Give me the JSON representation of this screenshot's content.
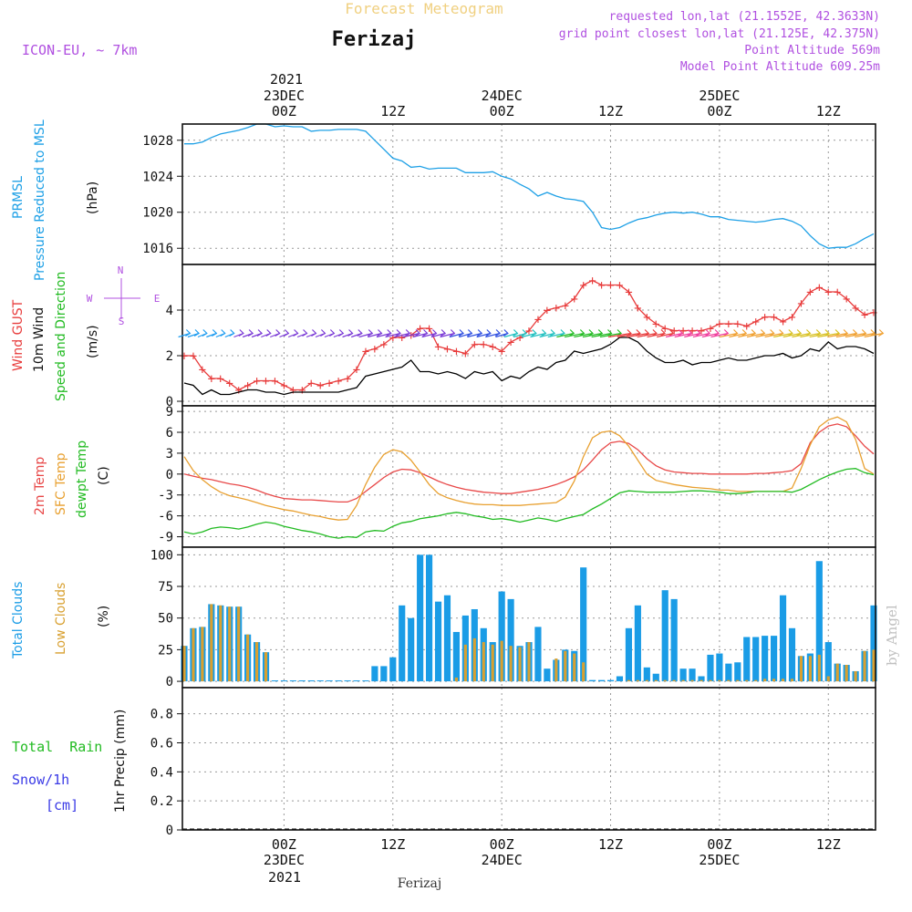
{
  "header": {
    "super_title": "Forecast Meteogram",
    "location": "Ferizaj",
    "model": "ICON-EU, ~ 7km",
    "requested_point": "requested lon,lat (21.1552E, 42.3633N)",
    "grid_point": "grid point closest lon,lat (21.125E, 42.375N)",
    "point_altitude": "Point Altitude 569m",
    "model_altitude": "Model Point Altitude 609.25m",
    "footer_location": "Ferizaj",
    "watermark": "by Angel"
  },
  "time_axis": {
    "top_year": "2021",
    "ticks": [
      {
        "hour": 0,
        "lines": [
          "23DEC",
          "00Z"
        ]
      },
      {
        "hour": 12,
        "lines": [
          "12Z"
        ]
      },
      {
        "hour": 24,
        "lines": [
          "24DEC",
          "00Z"
        ]
      },
      {
        "hour": 36,
        "lines": [
          "12Z"
        ]
      },
      {
        "hour": 48,
        "lines": [
          "25DEC",
          "00Z"
        ]
      },
      {
        "hour": 60,
        "lines": [
          "12Z"
        ]
      }
    ],
    "bottom_year": "2021",
    "range_hours": [
      -11.2,
      65.2
    ]
  },
  "colors": {
    "pressure": "#1ea0e6",
    "gust": "#e83c3c",
    "wind10m": "#000000",
    "temp2m": "#e84848",
    "sfc_temp": "#e8a030",
    "dewpoint": "#22bb22",
    "total_cloud": "#1a9ce6",
    "low_cloud": "#d8a030",
    "rain_label": "#22bb22",
    "snow_label": "#3a3ae6",
    "purple": "#b050e0"
  },
  "chart_data": [
    {
      "type": "line",
      "title": "PRMSL Pressure Reduced to MSL",
      "ylabel": "(hPa)",
      "ylim": [
        1014.2,
        1029.8
      ],
      "yticks": [
        1016,
        1020,
        1024,
        1028
      ],
      "x": [
        -11,
        -10,
        -9,
        -8,
        -7,
        -6,
        -5,
        -4,
        -3,
        -2,
        -1,
        0,
        1,
        2,
        3,
        4,
        5,
        6,
        7,
        8,
        9,
        10,
        11,
        12,
        13,
        14,
        15,
        16,
        17,
        18,
        19,
        20,
        21,
        22,
        23,
        24,
        25,
        26,
        27,
        28,
        29,
        30,
        31,
        32,
        33,
        34,
        35,
        36,
        37,
        38,
        39,
        40,
        41,
        42,
        43,
        44,
        45,
        46,
        47,
        48,
        49,
        50,
        51,
        52,
        53,
        54,
        55,
        56,
        57,
        58,
        59,
        60,
        61,
        62,
        63,
        64,
        65
      ],
      "series": [
        {
          "name": "PRMSL",
          "values": [
            1027.6,
            1027.6,
            1027.8,
            1028.3,
            1028.7,
            1028.9,
            1029.1,
            1029.4,
            1029.8,
            1029.8,
            1029.5,
            1029.6,
            1029.5,
            1029.5,
            1029.0,
            1029.1,
            1029.1,
            1029.2,
            1029.2,
            1029.2,
            1029.0,
            1028.0,
            1027.0,
            1026.0,
            1025.7,
            1025.0,
            1025.1,
            1024.8,
            1024.9,
            1024.9,
            1024.9,
            1024.4,
            1024.4,
            1024.4,
            1024.5,
            1024.0,
            1023.7,
            1023.1,
            1022.6,
            1021.8,
            1022.2,
            1021.8,
            1021.5,
            1021.4,
            1021.2,
            1020.0,
            1018.3,
            1018.1,
            1018.3,
            1018.8,
            1019.2,
            1019.4,
            1019.7,
            1019.9,
            1020.0,
            1019.9,
            1020.0,
            1019.8,
            1019.5,
            1019.5,
            1019.2,
            1019.1,
            1019.0,
            1018.9,
            1019.0,
            1019.2,
            1019.3,
            1019.0,
            1018.5,
            1017.4,
            1016.5,
            1016.0,
            1016.1,
            1016.1,
            1016.5,
            1017.1,
            1017.6
          ]
        }
      ]
    },
    {
      "type": "line",
      "title": "Wind GUST / 10m Wind Speed and Direction",
      "ylabel": "(m/s)",
      "ylim": [
        -0.2,
        6.0
      ],
      "yticks": [
        0,
        2,
        4
      ],
      "compass": [
        "N",
        "W",
        "E",
        "S"
      ],
      "x": [
        -11,
        -10,
        -9,
        -8,
        -7,
        -6,
        -5,
        -4,
        -3,
        -2,
        -1,
        0,
        1,
        2,
        3,
        4,
        5,
        6,
        7,
        8,
        9,
        10,
        11,
        12,
        13,
        14,
        15,
        16,
        17,
        18,
        19,
        20,
        21,
        22,
        23,
        24,
        25,
        26,
        27,
        28,
        29,
        30,
        31,
        32,
        33,
        34,
        35,
        36,
        37,
        38,
        39,
        40,
        41,
        42,
        43,
        44,
        45,
        46,
        47,
        48,
        49,
        50,
        51,
        52,
        53,
        54,
        55,
        56,
        57,
        58,
        59,
        60,
        61,
        62,
        63,
        64,
        65
      ],
      "series": [
        {
          "name": "Wind GUST",
          "values": [
            2.0,
            2.0,
            1.4,
            1.0,
            1.0,
            0.8,
            0.5,
            0.7,
            0.9,
            0.9,
            0.9,
            0.7,
            0.5,
            0.5,
            0.8,
            0.7,
            0.8,
            0.9,
            1.0,
            1.4,
            2.2,
            2.3,
            2.5,
            2.8,
            2.8,
            2.9,
            3.2,
            3.2,
            2.4,
            2.3,
            2.2,
            2.1,
            2.5,
            2.5,
            2.4,
            2.2,
            2.6,
            2.8,
            3.1,
            3.6,
            4.0,
            4.1,
            4.2,
            4.5,
            5.1,
            5.3,
            5.1,
            5.1,
            5.1,
            4.8,
            4.1,
            3.7,
            3.4,
            3.2,
            3.1,
            3.1,
            3.1,
            3.1,
            3.2,
            3.4,
            3.4,
            3.4,
            3.3,
            3.5,
            3.7,
            3.7,
            3.5,
            3.7,
            4.3,
            4.8,
            5.0,
            4.8,
            4.8,
            4.5,
            4.1,
            3.8,
            3.9
          ]
        },
        {
          "name": "10m Wind",
          "values": [
            0.8,
            0.7,
            0.3,
            0.5,
            0.3,
            0.3,
            0.4,
            0.5,
            0.5,
            0.4,
            0.4,
            0.3,
            0.4,
            0.4,
            0.4,
            0.4,
            0.4,
            0.4,
            0.5,
            0.6,
            1.1,
            1.2,
            1.3,
            1.4,
            1.5,
            1.8,
            1.3,
            1.3,
            1.2,
            1.3,
            1.2,
            1.0,
            1.3,
            1.2,
            1.3,
            0.9,
            1.1,
            1.0,
            1.3,
            1.5,
            1.4,
            1.7,
            1.8,
            2.2,
            2.1,
            2.2,
            2.3,
            2.5,
            2.8,
            2.8,
            2.6,
            2.2,
            1.9,
            1.7,
            1.7,
            1.8,
            1.6,
            1.7,
            1.7,
            1.8,
            1.9,
            1.8,
            1.8,
            1.9,
            2.0,
            2.0,
            2.1,
            1.9,
            2.0,
            2.3,
            2.2,
            2.6,
            2.3,
            2.4,
            2.4,
            2.3,
            2.1
          ]
        }
      ]
    },
    {
      "type": "line",
      "title": "2m Temp / SFC Temp / dewpt Temp",
      "ylabel": "(C)",
      "ylim": [
        -10.5,
        9.8
      ],
      "yticks": [
        -9,
        -6,
        -3,
        0,
        3,
        6,
        9
      ],
      "x": [
        -11,
        -10,
        -9,
        -8,
        -7,
        -6,
        -5,
        -4,
        -3,
        -2,
        -1,
        0,
        1,
        2,
        3,
        4,
        5,
        6,
        7,
        8,
        9,
        10,
        11,
        12,
        13,
        14,
        15,
        16,
        17,
        18,
        19,
        20,
        21,
        22,
        23,
        24,
        25,
        26,
        27,
        28,
        29,
        30,
        31,
        32,
        33,
        34,
        35,
        36,
        37,
        38,
        39,
        40,
        41,
        42,
        43,
        44,
        45,
        46,
        47,
        48,
        49,
        50,
        51,
        52,
        53,
        54,
        55,
        56,
        57,
        58,
        59,
        60,
        61,
        62,
        63,
        64,
        65
      ],
      "series": [
        {
          "name": "2m Temp",
          "values": [
            0.0,
            -0.3,
            -0.6,
            -0.8,
            -1.1,
            -1.4,
            -1.6,
            -1.9,
            -2.3,
            -2.8,
            -3.2,
            -3.5,
            -3.6,
            -3.7,
            -3.7,
            -3.8,
            -3.9,
            -4.0,
            -4.0,
            -3.5,
            -2.5,
            -1.5,
            -0.5,
            0.3,
            0.7,
            0.6,
            0.2,
            -0.4,
            -1.0,
            -1.5,
            -1.9,
            -2.2,
            -2.4,
            -2.6,
            -2.7,
            -2.8,
            -2.8,
            -2.6,
            -2.4,
            -2.2,
            -1.9,
            -1.5,
            -1.0,
            -0.4,
            0.6,
            2.0,
            3.5,
            4.5,
            4.7,
            4.4,
            3.5,
            2.2,
            1.2,
            0.6,
            0.3,
            0.2,
            0.1,
            0.1,
            0.0,
            0.0,
            0.0,
            0.0,
            0.0,
            0.1,
            0.1,
            0.2,
            0.3,
            0.5,
            1.5,
            4.5,
            6.0,
            6.9,
            7.2,
            6.8,
            5.5,
            4.0,
            2.9
          ]
        },
        {
          "name": "SFC Temp",
          "values": [
            2.5,
            0.5,
            -0.8,
            -1.8,
            -2.6,
            -3.1,
            -3.4,
            -3.7,
            -4.1,
            -4.5,
            -4.8,
            -5.1,
            -5.3,
            -5.6,
            -5.9,
            -6.1,
            -6.4,
            -6.6,
            -6.5,
            -4.5,
            -1.5,
            1.0,
            2.8,
            3.5,
            3.2,
            2.0,
            0.3,
            -1.5,
            -2.8,
            -3.4,
            -3.8,
            -4.1,
            -4.3,
            -4.4,
            -4.4,
            -4.5,
            -4.5,
            -4.5,
            -4.4,
            -4.3,
            -4.2,
            -4.1,
            -3.3,
            -1.0,
            2.5,
            5.2,
            6.0,
            6.2,
            5.5,
            4.0,
            2.0,
            0.0,
            -0.9,
            -1.2,
            -1.5,
            -1.7,
            -1.9,
            -2.0,
            -2.1,
            -2.3,
            -2.3,
            -2.5,
            -2.5,
            -2.5,
            -2.5,
            -2.5,
            -2.5,
            -2.0,
            0.8,
            4.2,
            6.8,
            7.8,
            8.2,
            7.5,
            5.0,
            0.8,
            0.0
          ]
        },
        {
          "name": "dewpt Temp",
          "values": [
            -8.3,
            -8.6,
            -8.3,
            -7.8,
            -7.6,
            -7.7,
            -7.9,
            -7.6,
            -7.2,
            -6.9,
            -7.1,
            -7.5,
            -7.8,
            -8.1,
            -8.3,
            -8.6,
            -9.0,
            -9.2,
            -9.0,
            -9.1,
            -8.3,
            -8.1,
            -8.2,
            -7.5,
            -7.0,
            -6.8,
            -6.4,
            -6.2,
            -6.0,
            -5.7,
            -5.5,
            -5.7,
            -6.0,
            -6.2,
            -6.5,
            -6.4,
            -6.6,
            -6.9,
            -6.6,
            -6.3,
            -6.5,
            -6.8,
            -6.4,
            -6.1,
            -5.8,
            -5.0,
            -4.3,
            -3.5,
            -2.7,
            -2.4,
            -2.5,
            -2.6,
            -2.6,
            -2.6,
            -2.6,
            -2.5,
            -2.4,
            -2.4,
            -2.5,
            -2.6,
            -2.8,
            -2.8,
            -2.7,
            -2.5,
            -2.5,
            -2.5,
            -2.5,
            -2.6,
            -2.2,
            -1.5,
            -0.8,
            -0.2,
            0.3,
            0.7,
            0.8,
            0.2,
            -0.1
          ]
        }
      ]
    },
    {
      "type": "bar",
      "title": "Total Clouds / Low Clouds",
      "ylabel": "(%)",
      "ylim": [
        -5,
        106
      ],
      "yticks": [
        0,
        25,
        50,
        75,
        100
      ],
      "x": [
        -11,
        -10,
        -9,
        -8,
        -7,
        -6,
        -5,
        -4,
        -3,
        -2,
        -1,
        0,
        1,
        2,
        3,
        4,
        5,
        6,
        7,
        8,
        9,
        10,
        11,
        12,
        13,
        14,
        15,
        16,
        17,
        18,
        19,
        20,
        21,
        22,
        23,
        24,
        25,
        26,
        27,
        28,
        29,
        30,
        31,
        32,
        33,
        34,
        35,
        36,
        37,
        38,
        39,
        40,
        41,
        42,
        43,
        44,
        45,
        46,
        47,
        48,
        49,
        50,
        51,
        52,
        53,
        54,
        55,
        56,
        57,
        58,
        59,
        60,
        61,
        62,
        63,
        64,
        65
      ],
      "series": [
        {
          "name": "Total Clouds",
          "values": [
            28,
            42,
            43,
            61,
            60,
            59,
            59,
            37,
            31,
            23,
            0,
            0,
            0,
            0,
            0,
            0,
            0,
            0,
            0,
            0,
            0,
            12,
            12,
            19,
            60,
            50,
            100,
            100,
            63,
            68,
            39,
            52,
            57,
            42,
            31,
            71,
            65,
            28,
            31,
            43,
            10,
            17,
            25,
            24,
            90,
            1,
            1,
            1,
            4,
            42,
            60,
            11,
            6,
            72,
            65,
            10,
            10,
            4,
            21,
            22,
            14,
            15,
            35,
            35,
            36,
            36,
            68,
            42,
            20,
            22,
            95,
            31,
            14,
            13,
            8,
            24,
            60
          ]
        },
        {
          "name": "Low Clouds",
          "values": [
            28,
            42,
            43,
            61,
            60,
            59,
            59,
            37,
            31,
            23,
            0,
            0,
            0,
            0,
            0,
            0,
            0,
            0,
            0,
            0,
            0,
            0,
            0,
            0,
            0,
            0,
            0,
            0,
            0,
            0,
            3,
            29,
            34,
            31,
            29,
            32,
            28,
            27,
            31,
            0,
            0,
            18,
            24,
            22,
            15,
            0,
            0,
            0,
            0,
            1,
            1,
            1,
            1,
            1,
            1,
            1,
            1,
            1,
            1,
            1,
            1,
            1,
            1,
            1,
            2,
            2,
            2,
            2,
            20,
            20,
            21,
            4,
            14,
            13,
            8,
            24,
            25
          ]
        }
      ]
    },
    {
      "type": "line",
      "title": "1hr Precip (mm)",
      "ylabel": "1hr Precip (mm)",
      "legend_total_rain": "Total  Rain",
      "legend_snow": "Snow/1h",
      "legend_snow_unit": "[cm]",
      "ylim": [
        0,
        0.98
      ],
      "yticks": [
        0,
        0.2,
        0.4,
        0.6,
        0.8
      ],
      "x": [],
      "series": []
    }
  ]
}
